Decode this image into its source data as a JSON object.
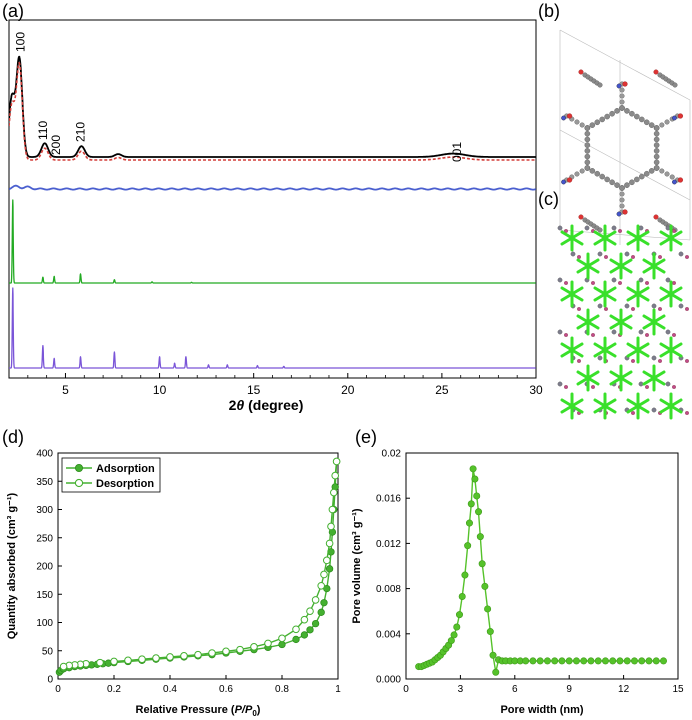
{
  "panel_labels": {
    "a": "(a)",
    "b": "(b)",
    "c": "(c)",
    "d": "(d)",
    "e": "(e)"
  },
  "colors": {
    "pxrd_exp": "#000000",
    "pxrd_fit": "#d43f3a",
    "difference": "#4a5fcf",
    "sim1": "#22aa22",
    "sim2": "#7a55d8",
    "isotherm": "#44b030",
    "pore": "#55c22a"
  },
  "chart_data": [
    {
      "id": "a",
      "type": "line",
      "title": "",
      "xlabel_main": "2",
      "xlabel_theta": "θ",
      "xlabel_rest": " (degree)",
      "ylabel": "",
      "xlim": [
        2,
        30
      ],
      "xticks": [
        "5",
        "10",
        "15",
        "20",
        "25",
        "30"
      ],
      "grid": false,
      "annotations": [
        {
          "text": "100",
          "x": 2.6
        },
        {
          "text": "110",
          "x": 3.8
        },
        {
          "text": "200",
          "x": 4.5
        },
        {
          "text": "210",
          "x": 5.8
        },
        {
          "text": "001",
          "x": 25.8
        }
      ],
      "series": [
        {
          "role": "experimental",
          "peaks": [
            [
              2.15,
              60
            ],
            [
              2.55,
              100
            ],
            [
              3.9,
              14
            ],
            [
              5.85,
              11
            ],
            [
              7.8,
              3
            ],
            [
              25.6,
              3.5
            ]
          ]
        },
        {
          "role": "fitted",
          "peaks": [
            [
              2.15,
              55
            ],
            [
              2.55,
              97
            ],
            [
              3.9,
              12
            ],
            [
              5.85,
              9
            ],
            [
              7.8,
              2.5
            ],
            [
              25.6,
              3
            ]
          ]
        },
        {
          "role": "difference",
          "peaks": [
            [
              2.4,
              3
            ],
            [
              3.0,
              2
            ]
          ]
        },
        {
          "role": "simulated-1",
          "peaks": [
            [
              2.2,
              100
            ],
            [
              3.8,
              7
            ],
            [
              4.4,
              8
            ],
            [
              5.8,
              11
            ],
            [
              7.6,
              4
            ],
            [
              9.6,
              1.5
            ],
            [
              11.7,
              0.8
            ]
          ]
        },
        {
          "role": "simulated-2",
          "peaks": [
            [
              2.2,
              100
            ],
            [
              3.8,
              28
            ],
            [
              4.4,
              12
            ],
            [
              5.8,
              14
            ],
            [
              7.6,
              20
            ],
            [
              10.0,
              14
            ],
            [
              10.8,
              6
            ],
            [
              11.4,
              14
            ],
            [
              12.6,
              4
            ],
            [
              13.6,
              4
            ],
            [
              15.2,
              3
            ],
            [
              16.6,
              2
            ]
          ]
        }
      ]
    },
    {
      "id": "d",
      "type": "line",
      "title": "",
      "xlabel_main": "Relative Pressure (",
      "xlabel_italic": "P/P",
      "xlabel_sub": "0",
      "xlabel_end": ")",
      "ylabel": "Quantity absorbed (cm³ g⁻¹)",
      "xlim": [
        0,
        1.0
      ],
      "ylim": [
        0,
        400
      ],
      "xticks": [
        "0",
        "0.2",
        "0.4",
        "0.6",
        "0.8",
        "1"
      ],
      "yticks": [
        "0",
        "50",
        "100",
        "150",
        "200",
        "250",
        "300",
        "350",
        "400"
      ],
      "legend": "top-left",
      "series": [
        {
          "name": "Adsorption",
          "marker": "filled",
          "x": [
            0.005,
            0.01,
            0.02,
            0.04,
            0.06,
            0.08,
            0.1,
            0.12,
            0.14,
            0.16,
            0.18,
            0.2,
            0.25,
            0.3,
            0.35,
            0.4,
            0.45,
            0.5,
            0.55,
            0.6,
            0.65,
            0.7,
            0.75,
            0.8,
            0.85,
            0.88,
            0.9,
            0.92,
            0.94,
            0.95,
            0.96,
            0.97,
            0.975,
            0.98,
            0.985,
            0.99,
            0.995
          ],
          "y": [
            12,
            15,
            18,
            20,
            22,
            23,
            24,
            25,
            26,
            27,
            28,
            29,
            31,
            33,
            35,
            37,
            39,
            41,
            43,
            46,
            49,
            52,
            56,
            61,
            70,
            78,
            87,
            98,
            118,
            135,
            160,
            195,
            225,
            260,
            300,
            340,
            385
          ]
        },
        {
          "name": "Desorption",
          "marker": "open",
          "x": [
            0.995,
            0.99,
            0.985,
            0.98,
            0.975,
            0.97,
            0.96,
            0.95,
            0.94,
            0.92,
            0.9,
            0.88,
            0.85,
            0.8,
            0.75,
            0.7,
            0.65,
            0.6,
            0.55,
            0.5,
            0.45,
            0.4,
            0.35,
            0.3,
            0.25,
            0.2,
            0.15,
            0.1,
            0.08,
            0.06,
            0.04,
            0.02
          ],
          "y": [
            385,
            360,
            330,
            300,
            270,
            240,
            210,
            185,
            165,
            140,
            120,
            105,
            88,
            72,
            63,
            57,
            52,
            49,
            46,
            43,
            41,
            39,
            37,
            35,
            33,
            31,
            29,
            27,
            26,
            25,
            24,
            22
          ]
        }
      ]
    },
    {
      "id": "e",
      "type": "line",
      "title": "",
      "xlabel": "Pore width (nm)",
      "ylabel": "Pore volume (cm³ g⁻¹)",
      "xlim": [
        0,
        15
      ],
      "ylim": [
        0,
        0.02
      ],
      "xticks": [
        "0",
        "3",
        "6",
        "9",
        "12",
        "15"
      ],
      "yticks": [
        "0.000",
        "0.004",
        "0.008",
        "0.012",
        "0.016",
        "0.02"
      ],
      "series": [
        {
          "marker": "filled",
          "x": [
            0.7,
            0.85,
            1.0,
            1.15,
            1.3,
            1.45,
            1.6,
            1.75,
            1.9,
            2.05,
            2.2,
            2.35,
            2.5,
            2.65,
            2.8,
            2.95,
            3.1,
            3.25,
            3.4,
            3.5,
            3.6,
            3.7,
            3.8,
            3.9,
            4.0,
            4.1,
            4.2,
            4.35,
            4.5,
            4.65,
            4.8,
            4.95,
            5.1,
            5.3,
            5.5,
            5.75,
            6.0,
            6.3,
            6.6,
            7.0,
            7.4,
            7.8,
            8.2,
            8.6,
            9.0,
            9.4,
            9.8,
            10.2,
            10.6,
            11.0,
            11.4,
            11.8,
            12.2,
            12.6,
            13.0,
            13.4,
            13.8,
            14.2
          ],
          "y": [
            0.0011,
            0.0011,
            0.0012,
            0.0013,
            0.0014,
            0.0015,
            0.0017,
            0.0019,
            0.0021,
            0.0024,
            0.0027,
            0.003,
            0.0034,
            0.0039,
            0.0046,
            0.0057,
            0.0073,
            0.0092,
            0.0118,
            0.0138,
            0.0155,
            0.0186,
            0.0177,
            0.0162,
            0.0148,
            0.0126,
            0.0102,
            0.0082,
            0.0062,
            0.0042,
            0.0021,
            0.0006,
            0.0017,
            0.0016,
            0.0016,
            0.0016,
            0.0016,
            0.0016,
            0.0016,
            0.0016,
            0.0016,
            0.0016,
            0.0016,
            0.0016,
            0.0016,
            0.0016,
            0.0016,
            0.0016,
            0.0016,
            0.0016,
            0.0016,
            0.0016,
            0.0016,
            0.0016,
            0.0016,
            0.0016,
            0.0016,
            0.0016
          ]
        }
      ]
    }
  ],
  "structure_images": {
    "b": "honeycomb-framework-image",
    "c": "interpenetrated-framework-image"
  }
}
